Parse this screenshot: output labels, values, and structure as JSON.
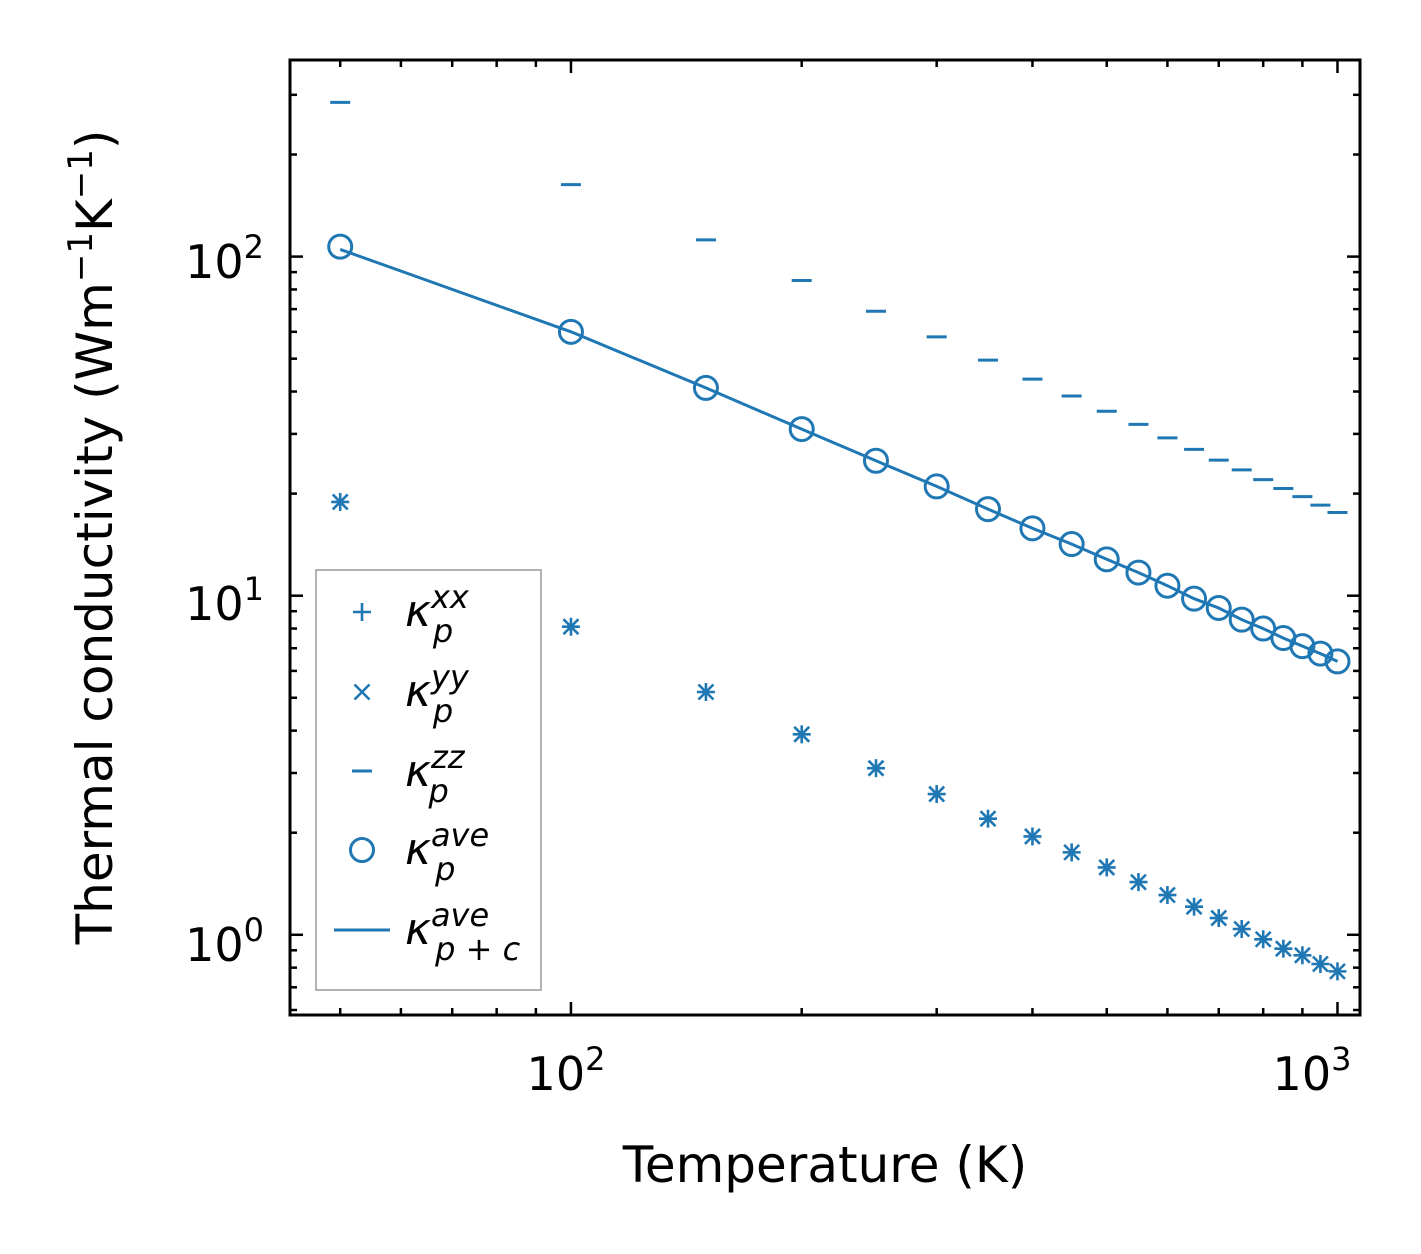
{
  "chart_data": {
    "type": "scatter",
    "xscale": "log",
    "yscale": "log",
    "xlim": [
      43,
      1070
    ],
    "ylim": [
      0.58,
      380
    ],
    "xlabel": "Temperature (K)",
    "ylabel": {
      "base": "Thermal conductivity (Wm",
      "exp1": "−1",
      "mid": "K",
      "exp2": "−1",
      "end": ")"
    },
    "xticks": [
      {
        "base": "10",
        "exp": "2",
        "value": 100
      },
      {
        "base": "10",
        "exp": "3",
        "value": 1000
      }
    ],
    "yticks": [
      {
        "base": "10",
        "exp": "0",
        "value": 1
      },
      {
        "base": "10",
        "exp": "1",
        "value": 10
      },
      {
        "base": "10",
        "exp": "2",
        "value": 100
      }
    ],
    "color": "#1f77b4",
    "x": [
      50,
      100,
      150,
      200,
      250,
      300,
      350,
      400,
      450,
      500,
      550,
      600,
      650,
      700,
      750,
      800,
      850,
      900,
      950,
      1000
    ],
    "series": [
      {
        "name": "kappa_p_xx",
        "marker": "plus",
        "values": [
          18.9,
          8.1,
          5.2,
          3.9,
          3.1,
          2.6,
          2.2,
          1.95,
          1.75,
          1.58,
          1.43,
          1.31,
          1.21,
          1.12,
          1.04,
          0.97,
          0.91,
          0.87,
          0.82,
          0.78
        ]
      },
      {
        "name": "kappa_p_yy",
        "marker": "x",
        "values": [
          18.9,
          8.1,
          5.2,
          3.9,
          3.1,
          2.6,
          2.2,
          1.95,
          1.75,
          1.58,
          1.43,
          1.31,
          1.21,
          1.12,
          1.04,
          0.97,
          0.91,
          0.87,
          0.82,
          0.78
        ]
      },
      {
        "name": "kappa_p_zz",
        "marker": "hline",
        "values": [
          285,
          163,
          112,
          85,
          69,
          58,
          49.5,
          43.5,
          38.8,
          35,
          32,
          29.2,
          27,
          25.1,
          23.5,
          22,
          20.7,
          19.6,
          18.5,
          17.6
        ]
      },
      {
        "name": "kappa_p_ave",
        "marker": "circle",
        "values": [
          107,
          60,
          41,
          31,
          25,
          21,
          18,
          15.8,
          14.2,
          12.8,
          11.7,
          10.7,
          9.8,
          9.2,
          8.5,
          8.0,
          7.5,
          7.1,
          6.75,
          6.4
        ]
      },
      {
        "name": "kappa_pc_ave",
        "marker": "line",
        "values": [
          105,
          60,
          41,
          31,
          25,
          21,
          18,
          15.8,
          14.2,
          12.8,
          11.7,
          10.7,
          9.8,
          9.2,
          8.5,
          8.0,
          7.5,
          7.1,
          6.75,
          6.4
        ]
      }
    ],
    "legend": {
      "position": "lower-left",
      "entries": [
        {
          "symbol": "κ",
          "sub": "p",
          "sup": "xx"
        },
        {
          "symbol": "κ",
          "sub": "p",
          "sup": "yy"
        },
        {
          "symbol": "κ",
          "sub": "p",
          "sup": "zz"
        },
        {
          "symbol": "κ",
          "sub": "p",
          "sup": "ave"
        },
        {
          "symbol": "κ",
          "sub": "p + c",
          "sup": "ave"
        }
      ]
    }
  }
}
